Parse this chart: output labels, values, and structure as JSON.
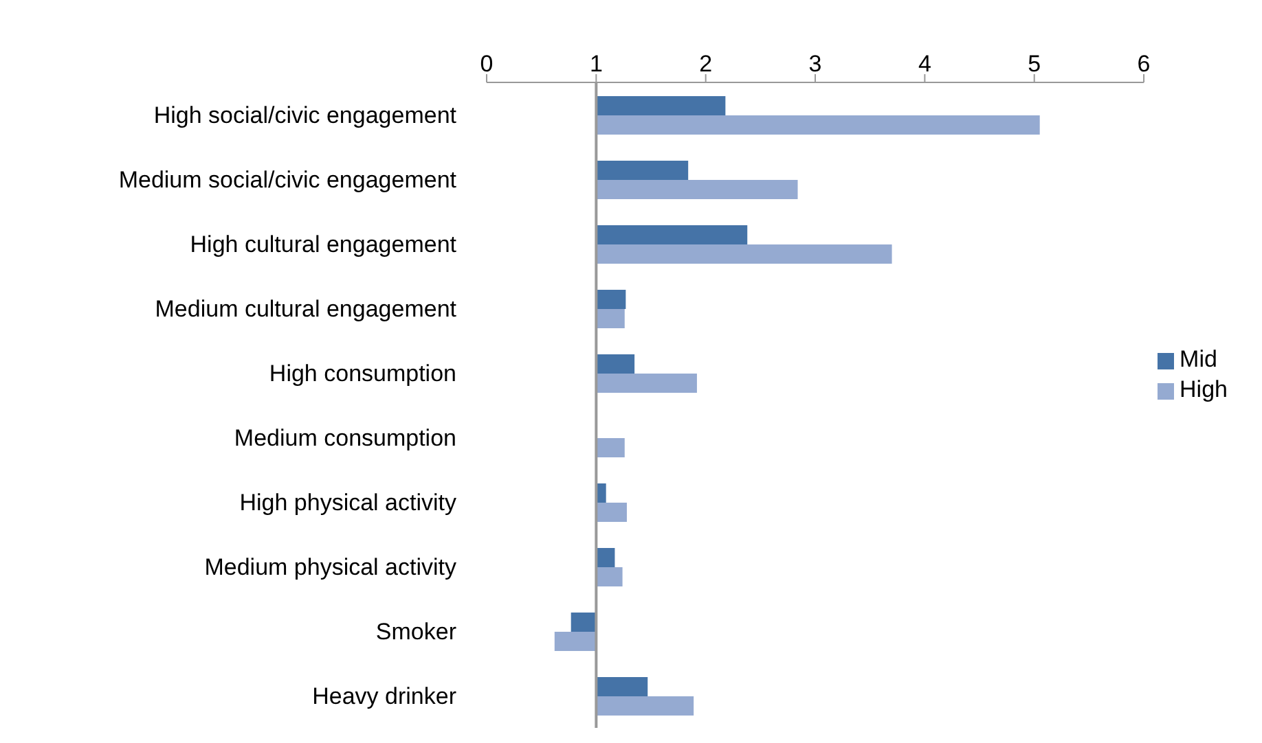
{
  "chart_data": {
    "type": "bar",
    "orientation": "horizontal",
    "categories": [
      "High social/civic engagement",
      "Medium social/civic engagement",
      "High cultural engagement",
      "Medium cultural engagement",
      "High consumption",
      "Medium consumption",
      "High physical activity",
      "Medium physical activity",
      "Smoker",
      "Heavy drinker"
    ],
    "series": [
      {
        "name": "Mid",
        "color": "#4573a7",
        "base": [
          1,
          1,
          1,
          1,
          1,
          null,
          1,
          1,
          1,
          1
        ],
        "values": [
          1.18,
          0.84,
          1.38,
          0.27,
          0.35,
          null,
          0.09,
          0.17,
          -0.23,
          0.47
        ]
      },
      {
        "name": "High",
        "color": "#95aad1",
        "base": [
          1,
          1,
          1,
          1,
          1,
          1,
          1,
          1,
          1,
          1
        ],
        "values": [
          4.05,
          1.84,
          2.7,
          0.26,
          0.92,
          0.26,
          0.28,
          0.24,
          -0.38,
          0.89
        ]
      }
    ],
    "ref_lines": [
      {
        "axis": "x",
        "value": 1,
        "color": "#999999"
      }
    ],
    "xlim": [
      0,
      6
    ],
    "xticks": [
      0,
      1,
      2,
      3,
      4,
      5,
      6
    ],
    "legend": "right"
  }
}
